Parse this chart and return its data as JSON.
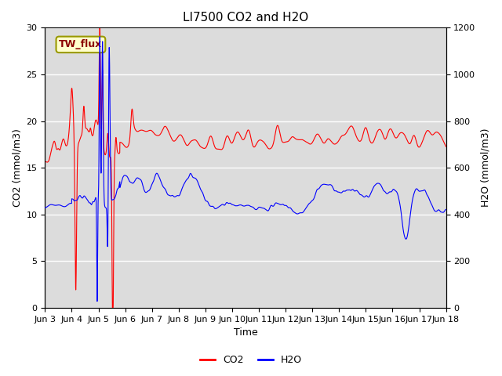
{
  "title": "LI7500 CO2 and H2O",
  "ylabel_left": "CO2 (mmol/m3)",
  "ylabel_right": "H2O (mmol/m3)",
  "xlabel": "Time",
  "ylim_left": [
    0,
    30
  ],
  "ylim_right": [
    0,
    1200
  ],
  "yticks_left": [
    0,
    5,
    10,
    15,
    20,
    25,
    30
  ],
  "yticks_right": [
    0,
    200,
    400,
    600,
    800,
    1000,
    1200
  ],
  "xtick_labels": [
    "Jun 3",
    "Jun 4",
    "Jun 5",
    "Jun 6",
    "Jun 7",
    "Jun 8",
    "Jun 9",
    "Jun 10",
    "Jun 11",
    "Jun 12",
    "Jun 13",
    "Jun 14",
    "Jun 15",
    "Jun 16",
    "Jun 17",
    "Jun 18"
  ],
  "annotation_text": "TW_flux",
  "bg_color": "#dcdcdc",
  "co2_color": "#ff0000",
  "h2o_color": "#0000ff",
  "legend_co2": "CO2",
  "legend_h2o": "H2O",
  "title_fontsize": 11,
  "label_fontsize": 9,
  "tick_fontsize": 8,
  "h2o_scale": 40.0
}
